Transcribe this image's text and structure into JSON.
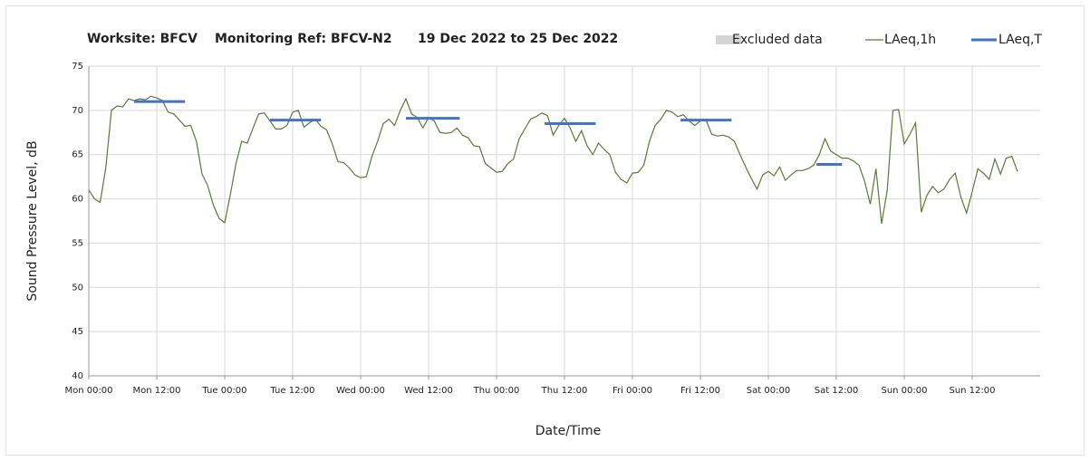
{
  "chart_data": {
    "type": "line",
    "title": [
      "Worksite: BFCV",
      "Monitoring Ref: BFCV-N2",
      "19 Dec 2022 to 25 Dec 2022"
    ],
    "x_label": "Date/Time",
    "y_label": "Sound Pressure Level, dB",
    "excluded_data": {
      "name": "Excluded data",
      "color": "#d4d4d4"
    },
    "x": [
      0,
      1,
      2,
      3,
      4,
      5,
      6,
      7,
      8,
      9,
      10,
      11,
      12,
      13,
      14,
      15,
      16,
      17,
      18,
      19,
      20,
      21,
      22,
      23,
      24,
      25,
      26,
      27,
      28,
      29,
      30,
      31,
      32,
      33,
      34,
      35,
      36,
      37,
      38,
      39,
      40,
      41,
      42,
      43,
      44,
      45,
      46,
      47,
      48,
      49,
      50,
      51,
      52,
      53,
      54,
      55,
      56,
      57,
      58,
      59,
      60,
      61,
      62,
      63,
      64,
      65,
      66,
      67,
      68,
      69,
      70,
      71,
      72,
      73,
      74,
      75,
      76,
      77,
      78,
      79,
      80,
      81,
      82,
      83,
      84,
      85,
      86,
      87,
      88,
      89,
      90,
      91,
      92,
      93,
      94,
      95,
      96,
      97,
      98,
      99,
      100,
      101,
      102,
      103,
      104,
      105,
      106,
      107,
      108,
      109,
      110,
      111,
      112,
      113,
      114,
      115,
      116,
      117,
      118,
      119,
      120,
      121,
      122,
      123,
      124,
      125,
      126,
      127,
      128,
      129,
      130,
      131,
      132,
      133,
      134,
      135,
      136,
      137,
      138,
      139,
      140,
      141,
      142,
      143,
      144,
      145,
      146,
      147,
      148,
      149,
      150,
      151,
      152,
      153,
      154,
      155,
      156,
      157,
      158,
      159,
      160,
      161,
      162,
      163,
      164
    ],
    "series": [
      {
        "name": "LAeq,1h",
        "color": "#5a7a3a",
        "values": [
          61,
          60,
          59.6,
          63.5,
          70,
          70.5,
          70.4,
          71.3,
          71.1,
          71.3,
          71.2,
          71.6,
          71.4,
          71.1,
          69.8,
          69.6,
          68.9,
          68.2,
          68.3,
          66.5,
          62.8,
          61.5,
          59.3,
          57.8,
          57.3,
          60.5,
          64,
          66.5,
          66.3,
          68,
          69.6,
          69.7,
          68.8,
          67.9,
          67.9,
          68.3,
          69.8,
          70,
          68.1,
          68.6,
          69,
          68.2,
          67.8,
          66.2,
          64.2,
          64.1,
          63.5,
          62.7,
          62.4,
          62.5,
          64.8,
          66.5,
          68.5,
          69,
          68.3,
          70,
          71.3,
          69.6,
          69.2,
          68,
          69.2,
          68.8,
          67.5,
          67.4,
          67.5,
          68,
          67.2,
          66.9,
          66,
          65.9,
          64,
          63.5,
          63,
          63.1,
          64,
          64.5,
          66.8,
          67.9,
          69,
          69.3,
          69.7,
          69.4,
          67.2,
          68.3,
          69.1,
          68,
          66.5,
          67.7,
          66,
          65,
          66.3,
          65.6,
          65,
          63,
          62.2,
          61.8,
          62.9,
          63,
          63.8,
          66.5,
          68.3,
          69,
          70,
          69.8,
          69.3,
          69.5,
          68.8,
          68.3,
          68.8,
          68.9,
          67.3,
          67.1,
          67.2,
          67,
          66.5,
          65,
          63.6,
          62.3,
          61.1,
          62.7,
          63.1,
          62.6,
          63.6,
          62.1,
          62.7,
          63.2,
          63.2,
          63.4,
          63.8,
          65,
          66.8,
          65.4,
          65,
          64.6,
          64.6,
          64.3,
          63.8,
          62,
          59.4,
          63.4,
          57.2,
          61,
          70,
          70.1,
          66.2,
          67.3,
          68.6,
          58.5,
          60.4,
          61.4,
          60.7,
          61.1,
          62.2,
          62.9,
          60.2,
          58.4,
          60.8,
          63.4,
          62.9,
          62.2,
          64.5,
          62.8,
          64.6,
          64.8,
          63.1
        ]
      },
      {
        "name": "LAeq,T",
        "color": "#4472c4",
        "segments": [
          {
            "start": 8,
            "end": 17,
            "value": 71
          },
          {
            "start": 32,
            "end": 41,
            "value": 68.9
          },
          {
            "start": 56,
            "end": 65.5,
            "value": 69.1
          },
          {
            "start": 80.5,
            "end": 89.5,
            "value": 68.5
          },
          {
            "start": 104.5,
            "end": 113.5,
            "value": 68.9
          },
          {
            "start": 128.5,
            "end": 133,
            "value": 63.9
          }
        ]
      }
    ],
    "xlim": [
      0,
      168
    ],
    "xticks": [
      {
        "value": 0,
        "label": "Mon 00:00"
      },
      {
        "value": 12,
        "label": "Mon 12:00"
      },
      {
        "value": 24,
        "label": "Tue 00:00"
      },
      {
        "value": 36,
        "label": "Tue 12:00"
      },
      {
        "value": 48,
        "label": "Wed 00:00"
      },
      {
        "value": 60,
        "label": "Wed 12:00"
      },
      {
        "value": 72,
        "label": "Thu 00:00"
      },
      {
        "value": 84,
        "label": "Thu 12:00"
      },
      {
        "value": 96,
        "label": "Fri 00:00"
      },
      {
        "value": 108,
        "label": "Fri 12:00"
      },
      {
        "value": 120,
        "label": "Sat 00:00"
      },
      {
        "value": 132,
        "label": "Sat 12:00"
      },
      {
        "value": 144,
        "label": "Sun 00:00"
      },
      {
        "value": 156,
        "label": "Sun 12:00"
      }
    ],
    "ylim": [
      40,
      75
    ],
    "yticks": [
      40,
      45,
      50,
      55,
      60,
      65,
      70,
      75
    ],
    "grid": true
  }
}
